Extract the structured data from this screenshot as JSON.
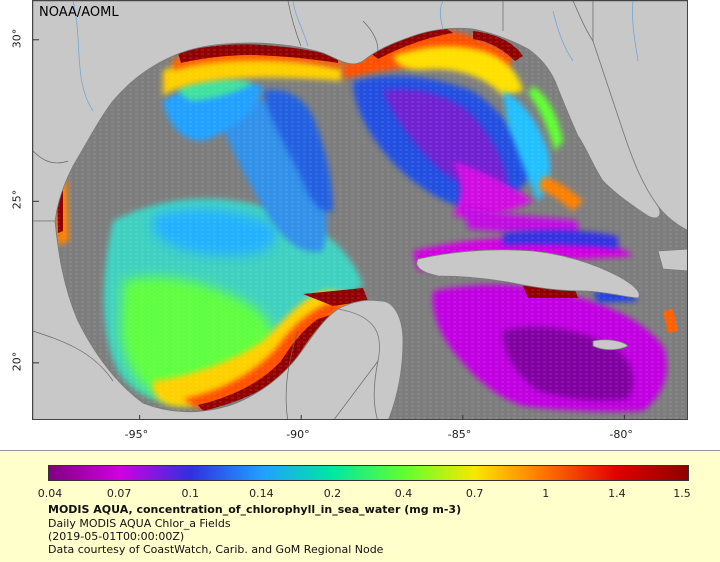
{
  "org_label": "NOAA/AOML",
  "x_ticks": [
    {
      "value": -95,
      "label": "-95°"
    },
    {
      "value": -90,
      "label": "-90°"
    },
    {
      "value": -85,
      "label": "-85°"
    },
    {
      "value": -80,
      "label": "-80°"
    }
  ],
  "y_ticks": [
    {
      "value": 30,
      "label": "30°"
    },
    {
      "value": 25,
      "label": "25°"
    },
    {
      "value": 20,
      "label": "20°"
    }
  ],
  "extent": {
    "lon_min": -98.3,
    "lon_max": -78.0,
    "lat_min": 18.2,
    "lat_max": 31.2
  },
  "colorbar": {
    "labels": [
      "0.04",
      "0.07",
      "0.1",
      "0.14",
      "0.2",
      "0.4",
      "0.7",
      "1",
      "1.4",
      "1.5"
    ],
    "colors": [
      "#800080",
      "#d000e0",
      "#3030e0",
      "#20a0ff",
      "#00e8a0",
      "#60ff30",
      "#f8e800",
      "#ff7000",
      "#e00000",
      "#900000"
    ]
  },
  "info": {
    "title": "MODIS AQUA, concentration_of_chlorophyll_in_sea_water (mg m-3)",
    "line2": "Daily MODIS AQUA Chlor_a Fields",
    "line3": "(2019-05-01T00:00:00Z)",
    "line4": "Data courtesy of CoastWatch, Carib. and GoM Regional Node"
  },
  "colors": {
    "land": "#c8c8c8",
    "nodata_water": "#7d7d7d",
    "legend_bg": "#ffffcc"
  }
}
